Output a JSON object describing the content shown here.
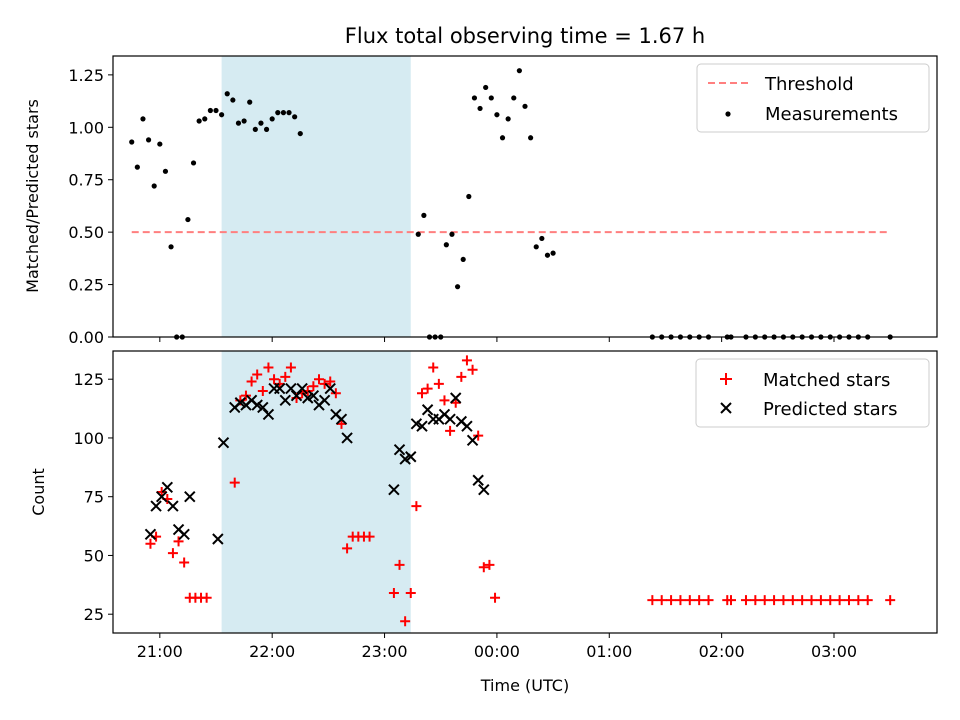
{
  "title": "Flux total observing time = 1.67 h",
  "colors": {
    "threshold": "#ff7f7f",
    "measurements": "#000000",
    "matched": "#ff0000",
    "predicted": "#000000",
    "highlight": "#add8e6"
  },
  "chart_data": [
    {
      "type": "scatter",
      "ylabel": "Matched/Predicted stars",
      "xlim": [
        "20:35",
        "03:55"
      ],
      "ylim": [
        0,
        1.34
      ],
      "yticks": [
        0.0,
        0.25,
        0.5,
        0.75,
        1.0,
        1.25
      ],
      "ytick_labels": [
        "0.00",
        "0.25",
        "0.50",
        "0.75",
        "1.00",
        "1.25"
      ],
      "highlight_span": [
        "21:33",
        "23:14"
      ],
      "legend": {
        "position": "top-right",
        "entries": [
          "Threshold",
          "Measurements"
        ]
      },
      "threshold": {
        "name": "Threshold",
        "y": 0.5,
        "x": [
          "20:45",
          "03:30"
        ]
      },
      "series": [
        {
          "name": "Measurements",
          "points": [
            [
              "20:45",
              0.93
            ],
            [
              "20:48",
              0.81
            ],
            [
              "20:51",
              1.04
            ],
            [
              "20:54",
              0.94
            ],
            [
              "20:57",
              0.72
            ],
            [
              "21:00",
              0.92
            ],
            [
              "21:03",
              0.79
            ],
            [
              "21:06",
              0.43
            ],
            [
              "21:09",
              0.0
            ],
            [
              "21:12",
              0.0
            ],
            [
              "21:15",
              0.56
            ],
            [
              "21:18",
              0.83
            ],
            [
              "21:21",
              1.03
            ],
            [
              "21:24",
              1.04
            ],
            [
              "21:27",
              1.08
            ],
            [
              "21:30",
              1.08
            ],
            [
              "21:33",
              1.06
            ],
            [
              "21:36",
              1.16
            ],
            [
              "21:39",
              1.13
            ],
            [
              "21:42",
              1.02
            ],
            [
              "21:45",
              1.03
            ],
            [
              "21:48",
              1.12
            ],
            [
              "21:51",
              0.99
            ],
            [
              "21:54",
              1.02
            ],
            [
              "21:57",
              0.99
            ],
            [
              "22:00",
              1.04
            ],
            [
              "22:03",
              1.07
            ],
            [
              "22:06",
              1.07
            ],
            [
              "22:09",
              1.07
            ],
            [
              "22:12",
              1.05
            ],
            [
              "22:15",
              0.97
            ],
            [
              "23:18",
              0.49
            ],
            [
              "23:21",
              0.58
            ],
            [
              "23:24",
              0.0
            ],
            [
              "23:27",
              0.0
            ],
            [
              "23:30",
              0.0
            ],
            [
              "23:33",
              0.44
            ],
            [
              "23:36",
              0.49
            ],
            [
              "23:39",
              0.24
            ],
            [
              "23:42",
              0.37
            ],
            [
              "23:45",
              0.67
            ],
            [
              "23:48",
              1.14
            ],
            [
              "23:51",
              1.09
            ],
            [
              "23:54",
              1.19
            ],
            [
              "23:57",
              1.14
            ],
            [
              "00:00",
              1.06
            ],
            [
              "00:03",
              0.95
            ],
            [
              "00:06",
              1.04
            ],
            [
              "00:09",
              1.14
            ],
            [
              "00:12",
              1.27
            ],
            [
              "00:15",
              1.1
            ],
            [
              "00:18",
              0.95
            ],
            [
              "00:21",
              0.43
            ],
            [
              "00:24",
              0.47
            ],
            [
              "00:27",
              0.39
            ],
            [
              "00:30",
              0.4
            ],
            [
              "01:23",
              0.0
            ],
            [
              "01:28",
              0.0
            ],
            [
              "01:33",
              0.0
            ],
            [
              "01:38",
              0.0
            ],
            [
              "01:43",
              0.0
            ],
            [
              "01:48",
              0.0
            ],
            [
              "01:53",
              0.0
            ],
            [
              "02:03",
              0.0
            ],
            [
              "02:05",
              0.0
            ],
            [
              "02:13",
              0.0
            ],
            [
              "02:18",
              0.0
            ],
            [
              "02:23",
              0.0
            ],
            [
              "02:28",
              0.0
            ],
            [
              "02:33",
              0.0
            ],
            [
              "02:38",
              0.0
            ],
            [
              "02:43",
              0.0
            ],
            [
              "02:48",
              0.0
            ],
            [
              "02:53",
              0.0
            ],
            [
              "02:58",
              0.0
            ],
            [
              "03:03",
              0.0
            ],
            [
              "03:08",
              0.0
            ],
            [
              "03:13",
              0.0
            ],
            [
              "03:18",
              0.0
            ],
            [
              "03:30",
              0.0
            ]
          ]
        }
      ]
    },
    {
      "type": "scatter",
      "xlabel": "Time (UTC)",
      "ylabel": "Count",
      "xlim": [
        "20:35",
        "03:55"
      ],
      "ylim": [
        17,
        137
      ],
      "yticks": [
        25,
        50,
        75,
        100,
        125
      ],
      "xticks": [
        "21:00",
        "22:00",
        "23:00",
        "00:00",
        "01:00",
        "02:00",
        "03:00"
      ],
      "highlight_span": [
        "21:33",
        "23:14"
      ],
      "legend": {
        "position": "top-right",
        "entries": [
          "Matched stars",
          "Predicted stars"
        ]
      },
      "series": [
        {
          "name": "Matched stars",
          "marker": "plus",
          "points": [
            [
              "20:55",
              55
            ],
            [
              "20:58",
              58
            ],
            [
              "21:01",
              77
            ],
            [
              "21:04",
              74
            ],
            [
              "21:07",
              51
            ],
            [
              "21:10",
              56
            ],
            [
              "21:13",
              47
            ],
            [
              "21:16",
              32
            ],
            [
              "21:19",
              32
            ],
            [
              "21:22",
              32
            ],
            [
              "21:25",
              32
            ],
            [
              "21:40",
              81
            ],
            [
              "21:43",
              116
            ],
            [
              "21:46",
              118
            ],
            [
              "21:49",
              124
            ],
            [
              "21:52",
              127
            ],
            [
              "21:55",
              120
            ],
            [
              "21:58",
              130
            ],
            [
              "22:01",
              125
            ],
            [
              "22:04",
              123
            ],
            [
              "22:07",
              126
            ],
            [
              "22:10",
              130
            ],
            [
              "22:13",
              117
            ],
            [
              "22:16",
              119
            ],
            [
              "22:19",
              120
            ],
            [
              "22:22",
              122
            ],
            [
              "22:25",
              125
            ],
            [
              "22:28",
              123
            ],
            [
              "22:31",
              124
            ],
            [
              "22:34",
              119
            ],
            [
              "22:37",
              106
            ],
            [
              "22:40",
              53
            ],
            [
              "22:43",
              58
            ],
            [
              "22:46",
              58
            ],
            [
              "22:49",
              58
            ],
            [
              "22:52",
              58
            ],
            [
              "23:05",
              34
            ],
            [
              "23:08",
              46
            ],
            [
              "23:11",
              22
            ],
            [
              "23:14",
              34
            ],
            [
              "23:17",
              71
            ],
            [
              "23:20",
              119
            ],
            [
              "23:23",
              121
            ],
            [
              "23:26",
              130
            ],
            [
              "23:29",
              123
            ],
            [
              "23:32",
              116
            ],
            [
              "23:35",
              103
            ],
            [
              "23:38",
              115
            ],
            [
              "23:41",
              126
            ],
            [
              "23:44",
              133
            ],
            [
              "23:47",
              129
            ],
            [
              "23:50",
              101
            ],
            [
              "23:53",
              45
            ],
            [
              "23:56",
              46
            ],
            [
              "23:59",
              32
            ],
            [
              "01:23",
              31
            ],
            [
              "01:28",
              31
            ],
            [
              "01:33",
              31
            ],
            [
              "01:38",
              31
            ],
            [
              "01:43",
              31
            ],
            [
              "01:48",
              31
            ],
            [
              "01:53",
              31
            ],
            [
              "02:03",
              31
            ],
            [
              "02:05",
              31
            ],
            [
              "02:13",
              31
            ],
            [
              "02:18",
              31
            ],
            [
              "02:23",
              31
            ],
            [
              "02:28",
              31
            ],
            [
              "02:33",
              31
            ],
            [
              "02:38",
              31
            ],
            [
              "02:43",
              31
            ],
            [
              "02:48",
              31
            ],
            [
              "02:53",
              31
            ],
            [
              "02:58",
              31
            ],
            [
              "03:03",
              31
            ],
            [
              "03:08",
              31
            ],
            [
              "03:13",
              31
            ],
            [
              "03:18",
              31
            ],
            [
              "03:30",
              31
            ]
          ]
        },
        {
          "name": "Predicted stars",
          "marker": "x",
          "points": [
            [
              "20:55",
              59
            ],
            [
              "20:58",
              71
            ],
            [
              "21:01",
              75
            ],
            [
              "21:04",
              79
            ],
            [
              "21:07",
              71
            ],
            [
              "21:10",
              61
            ],
            [
              "21:13",
              59
            ],
            [
              "21:16",
              75
            ],
            [
              "21:31",
              57
            ],
            [
              "21:34",
              98
            ],
            [
              "21:40",
              113
            ],
            [
              "21:43",
              115
            ],
            [
              "21:46",
              114
            ],
            [
              "21:49",
              116
            ],
            [
              "21:52",
              114
            ],
            [
              "21:55",
              113
            ],
            [
              "21:58",
              110
            ],
            [
              "22:01",
              121
            ],
            [
              "22:04",
              121
            ],
            [
              "22:07",
              116
            ],
            [
              "22:10",
              121
            ],
            [
              "22:13",
              118
            ],
            [
              "22:16",
              121
            ],
            [
              "22:19",
              117
            ],
            [
              "22:22",
              118
            ],
            [
              "22:25",
              114
            ],
            [
              "22:28",
              116
            ],
            [
              "22:31",
              121
            ],
            [
              "22:34",
              110
            ],
            [
              "22:37",
              108
            ],
            [
              "22:40",
              100
            ],
            [
              "23:05",
              78
            ],
            [
              "23:08",
              95
            ],
            [
              "23:11",
              91
            ],
            [
              "23:14",
              92
            ],
            [
              "23:17",
              106
            ],
            [
              "23:20",
              105
            ],
            [
              "23:23",
              112
            ],
            [
              "23:26",
              108
            ],
            [
              "23:29",
              108
            ],
            [
              "23:32",
              110
            ],
            [
              "23:35",
              108
            ],
            [
              "23:38",
              117
            ],
            [
              "23:41",
              107
            ],
            [
              "23:44",
              105
            ],
            [
              "23:47",
              99
            ],
            [
              "23:50",
              82
            ],
            [
              "23:53",
              78
            ]
          ]
        }
      ]
    }
  ]
}
